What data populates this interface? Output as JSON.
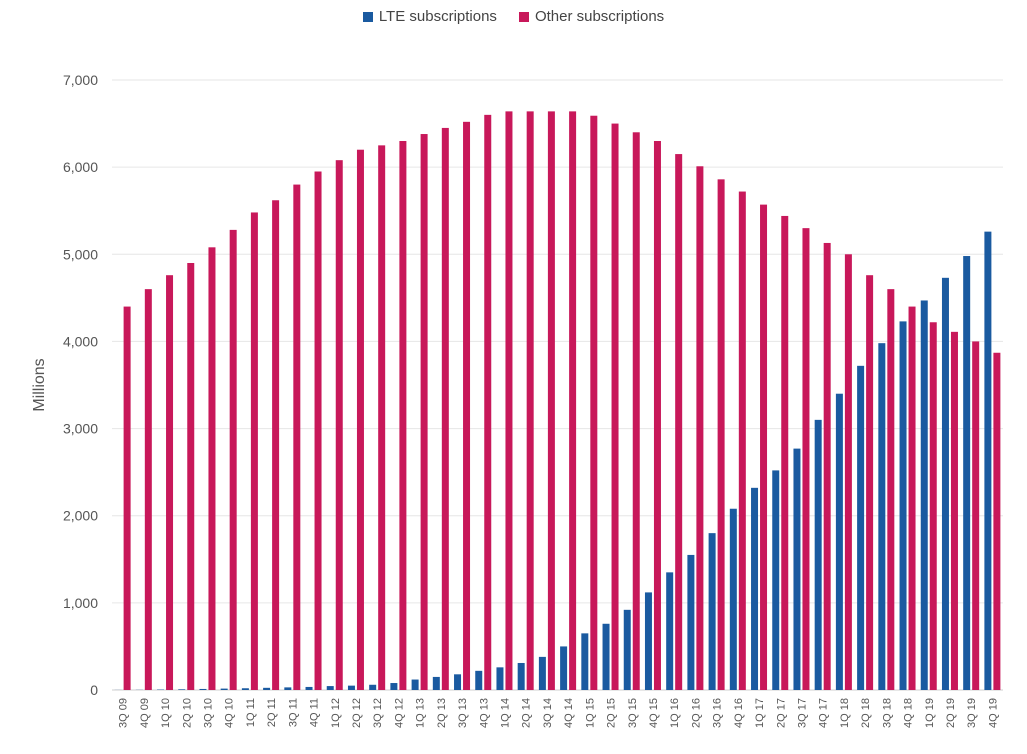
{
  "chart_data": {
    "type": "bar",
    "ylabel": "Millions",
    "xlabel": "",
    "ylim": [
      0,
      7000
    ],
    "yticks": [
      "0",
      "1,000",
      "2,000",
      "3,000",
      "4,000",
      "5,000",
      "6,000",
      "7,000"
    ],
    "legend_placement": "top-center",
    "grid": true,
    "categories": [
      "3Q 09",
      "4Q 09",
      "1Q 10",
      "2Q 10",
      "3Q 10",
      "4Q 10",
      "1Q 11",
      "2Q 11",
      "3Q 11",
      "4Q 11",
      "1Q 12",
      "2Q 12",
      "3Q 12",
      "4Q 12",
      "1Q 13",
      "2Q 13",
      "3Q 13",
      "4Q 13",
      "1Q 14",
      "2Q 14",
      "3Q 14",
      "4Q 14",
      "1Q 15",
      "2Q 15",
      "3Q 15",
      "4Q 15",
      "1Q 16",
      "2Q 16",
      "3Q 16",
      "4Q 16",
      "1Q 17",
      "2Q 17",
      "3Q 17",
      "4Q 17",
      "1Q 18",
      "2Q 18",
      "3Q 18",
      "4Q 18",
      "1Q 19",
      "2Q 19",
      "3Q 19",
      "4Q 19"
    ],
    "series": [
      {
        "name": "LTE subscriptions",
        "color": "#1a5aa0",
        "values": [
          1,
          2,
          5,
          8,
          12,
          16,
          20,
          25,
          30,
          35,
          45,
          50,
          60,
          80,
          120,
          150,
          180,
          220,
          260,
          310,
          380,
          500,
          650,
          760,
          920,
          1120,
          1350,
          1550,
          1800,
          2080,
          2320,
          2520,
          2770,
          3100,
          3400,
          3720,
          3980,
          4230,
          4470,
          4730,
          4980,
          5260
        ]
      },
      {
        "name": "Other subscriptions",
        "color": "#c8185a",
        "values": [
          4400,
          4600,
          4760,
          4900,
          5080,
          5280,
          5480,
          5620,
          5800,
          5950,
          6080,
          6200,
          6250,
          6300,
          6380,
          6450,
          6520,
          6600,
          6640,
          6640,
          6640,
          6640,
          6590,
          6500,
          6400,
          6300,
          6150,
          6010,
          5860,
          5720,
          5570,
          5440,
          5300,
          5130,
          5000,
          4760,
          4600,
          4400,
          4220,
          4110,
          4000,
          3870
        ]
      }
    ]
  }
}
